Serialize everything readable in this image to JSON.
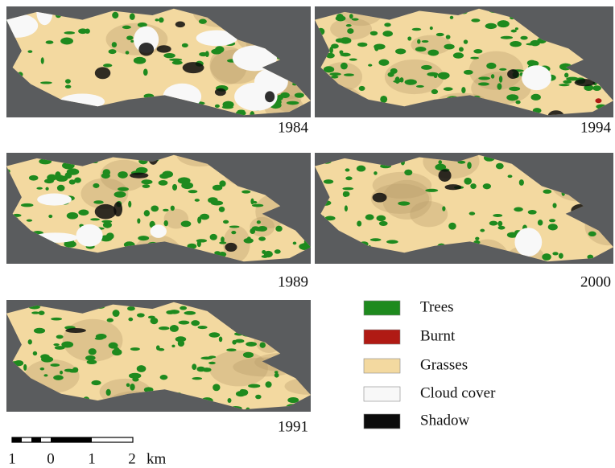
{
  "panels": [
    {
      "year": "1984"
    },
    {
      "year": "1994"
    },
    {
      "year": "1989"
    },
    {
      "year": "2000"
    },
    {
      "year": "1991"
    }
  ],
  "legend": [
    {
      "label": "Trees",
      "color": "#1e8a1e"
    },
    {
      "label": "Burnt",
      "color": "#b01a14"
    },
    {
      "label": "Grasses",
      "color": "#f3d9a0"
    },
    {
      "label": "Cloud cover",
      "color": "#f8f8f8"
    },
    {
      "label": "Shadow",
      "color": "#0c0c0c"
    }
  ],
  "scale_bar": {
    "labels": [
      "1",
      "0",
      "1",
      "2"
    ],
    "unit": "km"
  }
}
